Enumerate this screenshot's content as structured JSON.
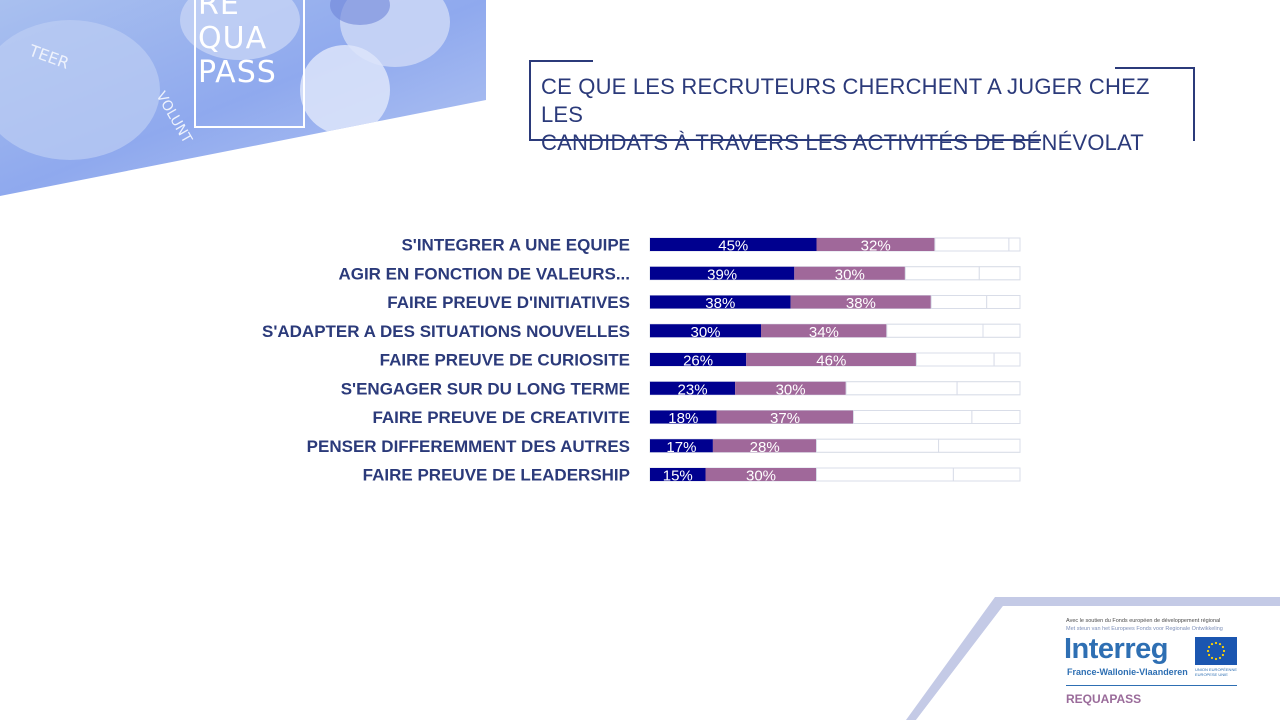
{
  "header": {
    "logo_lines": [
      "RE",
      "QUA",
      "PASS"
    ],
    "title_line1": "CE QUE LES RECRUTEURS CHERCHENT A JUGER CHEZ LES",
    "title_line2": "CANDIDATS À TRAVERS LES ACTIVITÉS DE BÉNÉVOLAT",
    "photo_words": [
      "TEER",
      "VOLUNT"
    ]
  },
  "colors": {
    "series1": "#00008f",
    "series2": "#a0689a",
    "label_text": "#2b3a7a",
    "track_line": "#d9dde8"
  },
  "chart_data": {
    "type": "bar",
    "orientation": "horizontal",
    "stacked": true,
    "categories": [
      "S'INTEGRER A UNE EQUIPE",
      "AGIR EN FONCTION DE VALEURS...",
      "FAIRE PREUVE D'INITIATIVES",
      "S'ADAPTER A DES SITUATIONS NOUVELLES",
      "FAIRE PREUVE DE CURIOSITE",
      "S'ENGAGER SUR DU LONG TERME",
      "FAIRE PREUVE DE CREATIVITE",
      "PENSER DIFFEREMMENT DES AUTRES",
      "FAIRE PREUVE DE LEADERSHIP"
    ],
    "series": [
      {
        "values": [
          45,
          39,
          38,
          30,
          26,
          23,
          18,
          17,
          15
        ],
        "labels": [
          "45%",
          "39%",
          "38%",
          "30%",
          "26%",
          "23%",
          "18%",
          "17%",
          "15%"
        ]
      },
      {
        "values": [
          32,
          30,
          38,
          34,
          46,
          30,
          37,
          28,
          30
        ],
        "labels": [
          "32%",
          "30%",
          "38%",
          "34%",
          "46%",
          "30%",
          "37%",
          "28%",
          "30%"
        ]
      },
      {
        "values": [
          20,
          20,
          15,
          26,
          21,
          30,
          32,
          33,
          37
        ]
      },
      {
        "values": [
          3,
          11,
          9,
          10,
          7,
          17,
          13,
          22,
          18
        ]
      }
    ],
    "xlim": [
      0,
      100
    ],
    "grid": false,
    "legend": "none"
  },
  "footer": {
    "support_line1": "Avec le soutien du Fonds européen de développement régional",
    "support_line2": "Met steun van het Europees Fonds voor Regionale Ontwikkeling",
    "program_name": "Interreg",
    "program_region": "France-Wallonie-Vlaanderen",
    "eu_caption": "UNION EUROPÉENNE EUROPESE UNIE",
    "project_name": "REQUAPASS"
  }
}
